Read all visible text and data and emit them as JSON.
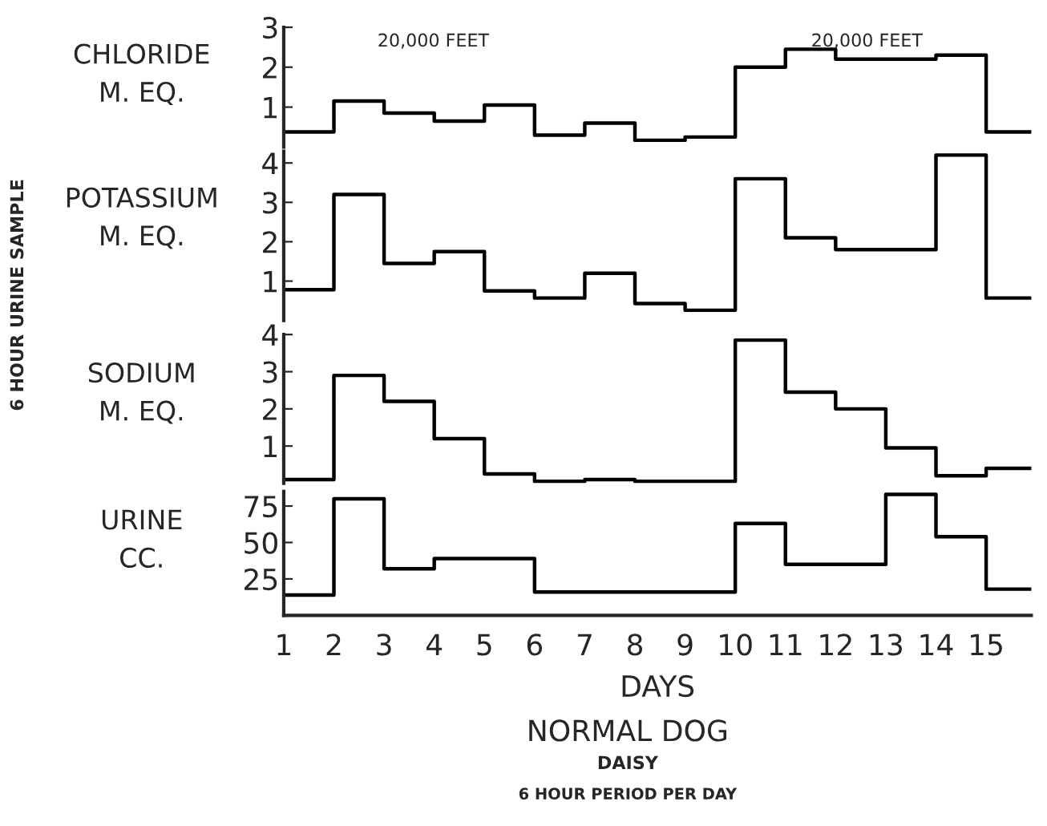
{
  "chart_data": [
    {
      "type": "step",
      "ylabel": "CHLORIDE\nM. EQ.",
      "tick_labels": "y",
      "x": [
        1,
        2,
        3,
        4,
        5,
        6,
        7,
        8,
        9,
        10,
        11,
        12,
        13,
        14,
        15,
        15.9
      ],
      "ylim": [
        0,
        3
      ],
      "yticks": [
        1,
        2,
        3
      ],
      "series": [
        {
          "color": "#000000",
          "values": [
            0.38,
            1.15,
            0.85,
            0.65,
            1.05,
            0.3,
            0.6,
            0.17,
            0.25,
            2.0,
            2.45,
            2.2,
            2.2,
            2.3,
            0.38,
            0.38
          ]
        }
      ],
      "annotations": [
        "20,000 FEET",
        "20,000 FEET"
      ]
    },
    {
      "type": "step",
      "ylabel": "POTASSIUM\nM. EQ.",
      "tick_labels": "y",
      "x": [
        1,
        2,
        3,
        4,
        5,
        6,
        7,
        8,
        9,
        10,
        11,
        12,
        13,
        14,
        15,
        15.9
      ],
      "ylim": [
        0,
        4.3
      ],
      "yticks": [
        1,
        2,
        3,
        4
      ],
      "series": [
        {
          "color": "#000000",
          "values": [
            0.78,
            3.2,
            1.45,
            1.75,
            0.75,
            0.57,
            1.2,
            0.43,
            0.26,
            3.6,
            2.1,
            1.8,
            1.8,
            4.2,
            0.57,
            0.57
          ]
        }
      ],
      "annotations": [
        "6 HOUR URINE SAMPLE"
      ]
    },
    {
      "type": "step",
      "ylabel": "SODIUM\nM. EQ.",
      "tick_labels": "y",
      "x": [
        1,
        2,
        3,
        4,
        5,
        6,
        7,
        8,
        9,
        10,
        11,
        12,
        13,
        14,
        15,
        15.9
      ],
      "ylim": [
        0,
        4
      ],
      "yticks": [
        1,
        2,
        3,
        4
      ],
      "series": [
        {
          "color": "#000000",
          "values": [
            0.1,
            2.9,
            2.2,
            1.2,
            0.25,
            0.05,
            0.1,
            0.05,
            0.05,
            3.85,
            2.45,
            2.0,
            0.95,
            0.2,
            0.4,
            0.4
          ]
        }
      ]
    },
    {
      "type": "step",
      "ylabel": "URINE\nCC.",
      "xlabel": "DAYS",
      "x": [
        1,
        2,
        3,
        4,
        5,
        6,
        7,
        8,
        9,
        10,
        11,
        12,
        13,
        14,
        15,
        15.9
      ],
      "xlim": [
        1,
        15.9
      ],
      "ylim": [
        0,
        85
      ],
      "yticks": [
        25,
        50,
        75
      ],
      "xticks": [
        1,
        2,
        3,
        4,
        5,
        6,
        7,
        8,
        9,
        10,
        11,
        12,
        13,
        14,
        15
      ],
      "series": [
        {
          "color": "#000000",
          "values": [
            14,
            80,
            32,
            39,
            39,
            16,
            16,
            16,
            16,
            63,
            35,
            35,
            83,
            54,
            18,
            18
          ]
        }
      ],
      "annotations": [
        "NORMAL DOG",
        "DAISY",
        "6 HOUR PERIOD PER DAY"
      ]
    }
  ]
}
